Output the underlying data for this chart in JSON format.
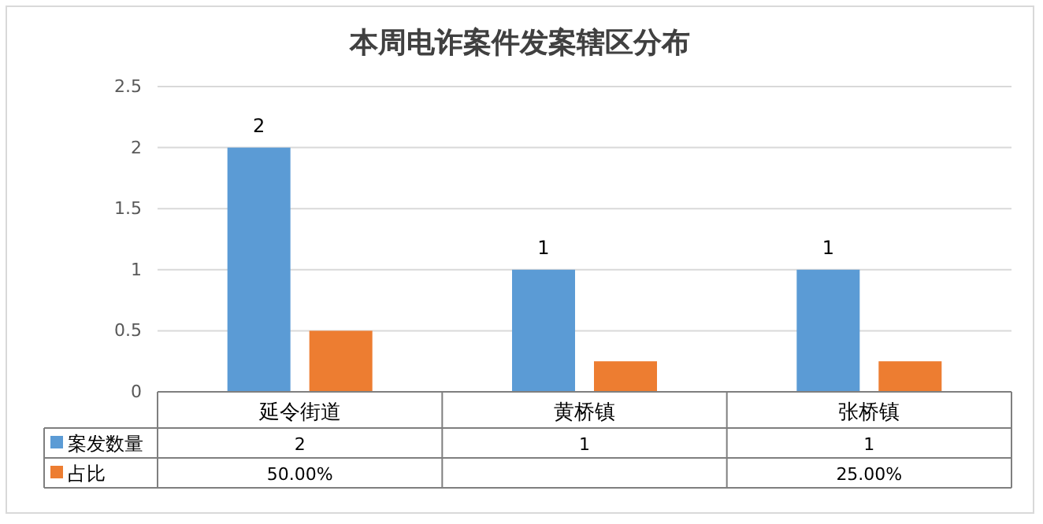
{
  "chart_data": {
    "type": "bar",
    "title": "本周电诈案件发案辖区分布",
    "categories": [
      "延令街道",
      "黄桥镇",
      "张桥镇"
    ],
    "series": [
      {
        "name": "案发数量",
        "color": "#5b9bd5",
        "values": [
          2,
          1,
          1
        ],
        "value_labels": [
          "2",
          "1",
          "1"
        ]
      },
      {
        "name": "占比",
        "color": "#ed7d31",
        "values": [
          0.5,
          0.25,
          0.25
        ],
        "value_labels": [
          "50.00%",
          null,
          "25.00%"
        ]
      }
    ],
    "ylim": [
      0,
      2.5
    ],
    "yticks": [
      0,
      0.5,
      1,
      1.5,
      2,
      2.5
    ],
    "grid": "y",
    "legend": "bottom"
  }
}
